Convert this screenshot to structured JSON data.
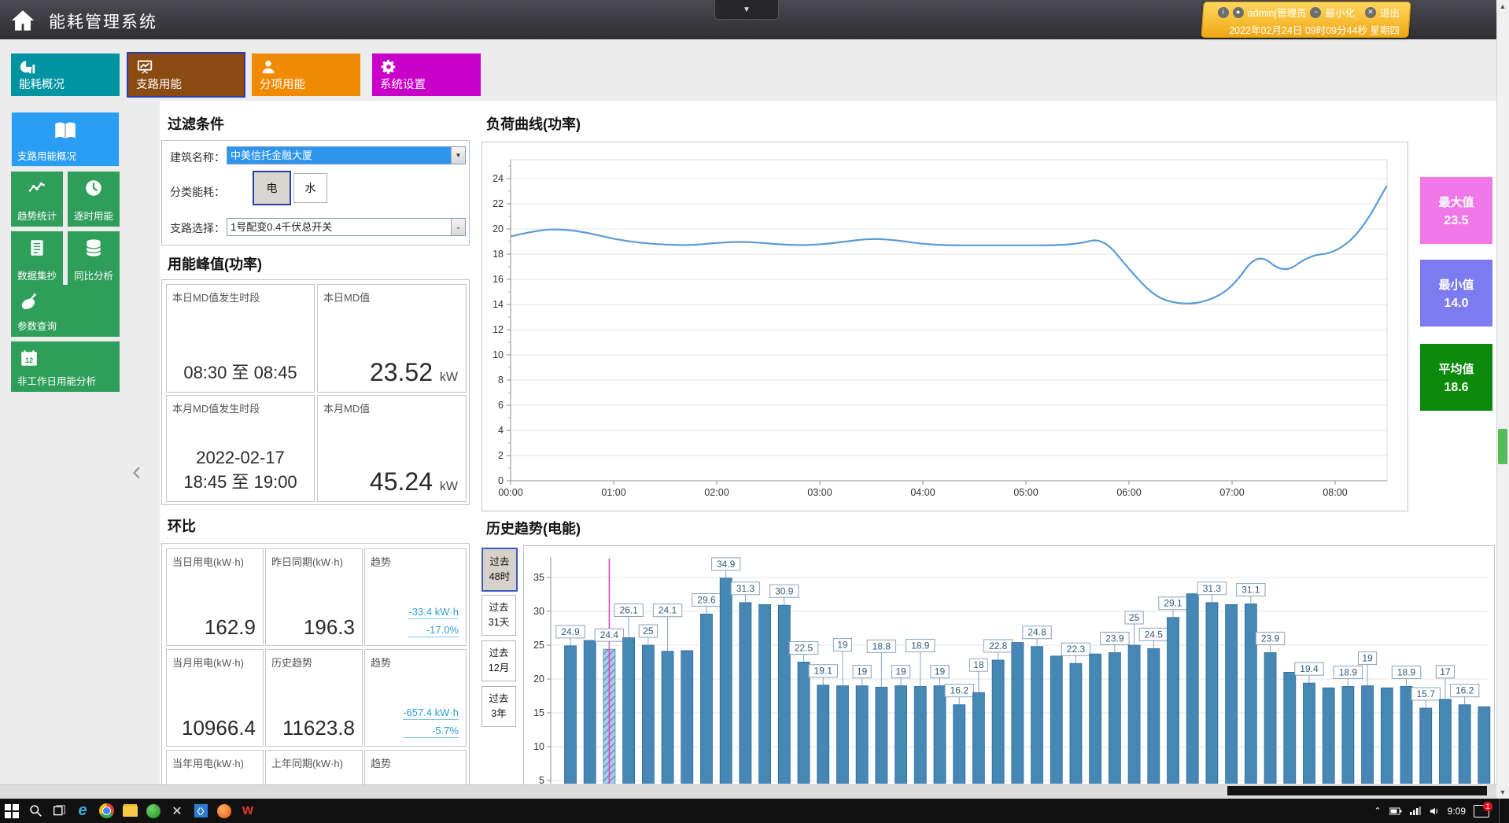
{
  "header": {
    "title": "能耗管理系统",
    "user": "admin|管理员",
    "minimize": "最小化",
    "logout": "退出",
    "datetime": "2022年02月24日  09时09分44秒  星期四",
    "collapse_icon": "▼"
  },
  "nav": {
    "tiles": [
      {
        "label": "能耗概况",
        "icon": "energy-overview",
        "color": "#0093a2",
        "selected": false
      },
      {
        "label": "支路用能",
        "icon": "branch-energy",
        "color": "#8a4a12",
        "selected": true
      },
      {
        "label": "分项用能",
        "icon": "subitem-energy",
        "color": "#f08a00",
        "selected": false
      },
      {
        "label": "系统设置",
        "icon": "system-settings",
        "color": "#c800c8",
        "selected": false
      }
    ]
  },
  "sidebar": {
    "items": [
      {
        "label": "支路用能概况",
        "icon": "book",
        "color": "#2a9df4",
        "selected": true
      },
      {
        "label": "趋势统计",
        "icon": "trend",
        "color": "#2f9e5a",
        "selected": false
      },
      {
        "label": "逐时用能",
        "icon": "clock",
        "color": "#2f9e5a",
        "selected": false
      },
      {
        "label": "数据集抄",
        "icon": "document",
        "color": "#2f9e5a",
        "selected": false
      },
      {
        "label": "同比分析",
        "icon": "database",
        "color": "#2f9e5a",
        "selected": false
      },
      {
        "label": "参数查询",
        "icon": "satellite",
        "color": "#2f9e5a",
        "selected": false
      },
      {
        "label": "非工作日用能分析",
        "icon": "calendar",
        "color": "#2f9e5a",
        "selected": false
      }
    ]
  },
  "filter": {
    "title": "过滤条件",
    "building_label": "建筑名称：",
    "building_value": "中美信托金融大厦",
    "category_label": "分类能耗：",
    "category_options": [
      {
        "label": "电",
        "selected": true
      },
      {
        "label": "水",
        "selected": false
      }
    ],
    "branch_label": "支路选择：",
    "branch_value": "1号配变0.4千伏总开关"
  },
  "peak": {
    "title": "用能峰值(功率)",
    "cards": [
      {
        "label": "本日MD值发生时段",
        "lines": [
          "08:30  至  08:45"
        ]
      },
      {
        "label": "本日MD值",
        "value": "23.52",
        "unit": "kW"
      },
      {
        "label": "本月MD值发生时段",
        "lines": [
          "2022-02-17",
          "18:45  至  19:00"
        ]
      },
      {
        "label": "本月MD值",
        "value": "45.24",
        "unit": "kW"
      }
    ]
  },
  "ring": {
    "title": "环比",
    "rows": [
      [
        {
          "label": "当日用电(kW·h)",
          "value": "162.9"
        },
        {
          "label": "昨日同期(kW·h)",
          "value": "196.3"
        },
        {
          "label": "趋势",
          "trends": [
            "-33.4 kW·h",
            "-17.0%"
          ]
        }
      ],
      [
        {
          "label": "当月用电(kW·h)",
          "value": "10966.4"
        },
        {
          "label": "历史趋势",
          "value": "11623.8"
        },
        {
          "label": "趋势",
          "trends": [
            "-657.4 kW·h",
            "-5.7%"
          ]
        }
      ],
      [
        {
          "label": "当年用电(kW·h)"
        },
        {
          "label": "上年同期(kW·h)"
        },
        {
          "label": "趋势"
        }
      ]
    ]
  },
  "load_curve": {
    "title": "负荷曲线(功率)",
    "stats": [
      {
        "label": "最大值",
        "value": "23.5",
        "color": "#f078e8"
      },
      {
        "label": "最小值",
        "value": "14.0",
        "color": "#7c7cf0"
      },
      {
        "label": "平均值",
        "value": "18.6",
        "color": "#0c8a0c"
      }
    ]
  },
  "history": {
    "title": "历史趋势(电能)",
    "range_buttons": [
      {
        "line1": "过去",
        "line2": "48时",
        "selected": true
      },
      {
        "line1": "过去",
        "line2": "31天",
        "selected": false
      },
      {
        "line1": "过去",
        "line2": "12月",
        "selected": false
      },
      {
        "line1": "过去",
        "line2": "3年",
        "selected": false
      }
    ]
  },
  "chart_data": [
    {
      "type": "line",
      "title": "负荷曲线(功率)",
      "y_unit": "kW",
      "ylim": [
        0,
        25.5
      ],
      "y_tick_step": 2,
      "y_ticks": [
        0,
        2,
        4,
        6,
        8,
        10,
        12,
        14,
        16,
        18,
        20,
        22,
        24
      ],
      "x_ticks": [
        "00:00",
        "01:00",
        "02:00",
        "03:00",
        "04:00",
        "05:00",
        "06:00",
        "07:00",
        "08:00"
      ],
      "x_start_minutes": 0,
      "x_step_minutes": 15,
      "grid": true,
      "legend": "none",
      "line_color": "#5b9bd5",
      "values": [
        19.4,
        19.9,
        20.0,
        19.7,
        19.2,
        18.9,
        18.75,
        18.7,
        18.9,
        19.0,
        18.85,
        18.7,
        18.75,
        19.0,
        19.25,
        19.1,
        18.8,
        18.7,
        18.7,
        18.7,
        18.7,
        18.7,
        18.8,
        19.3,
        16.8,
        14.6,
        14.0,
        14.2,
        15.3,
        18.2,
        16.4,
        17.9,
        18.1,
        19.8,
        23.4
      ],
      "stats": {
        "max": 23.5,
        "min": 14.0,
        "avg": 18.6
      }
    },
    {
      "type": "bar",
      "title": "历史趋势(电能)",
      "range": "过去48时",
      "y_ticks": [
        5,
        10,
        15,
        20,
        25,
        30,
        35
      ],
      "grid": true,
      "bar_color": "#4787b6",
      "highlight_index": 2,
      "highlight_line_color": "#e238c2",
      "bars": [
        {
          "v": 24.9,
          "label": "24.9"
        },
        {
          "v": 25.7
        },
        {
          "v": 24.4,
          "label": "24.4"
        },
        {
          "v": 26.1,
          "label": "26.1"
        },
        {
          "v": 25.0,
          "label": "25"
        },
        {
          "v": 24.1,
          "label": "24.1"
        },
        {
          "v": 24.2
        },
        {
          "v": 29.6,
          "label": "29.6"
        },
        {
          "v": 34.9,
          "label": "34.9"
        },
        {
          "v": 31.3,
          "label": "31.3"
        },
        {
          "v": 31.0
        },
        {
          "v": 30.9,
          "label": "30.9"
        },
        {
          "v": 22.5,
          "label": "22.5"
        },
        {
          "v": 19.1,
          "label": "19.1"
        },
        {
          "v": 19.0,
          "label": "19"
        },
        {
          "v": 19.0,
          "label": "19"
        },
        {
          "v": 18.8,
          "label": "18.8"
        },
        {
          "v": 19.0,
          "label": "19"
        },
        {
          "v": 18.9,
          "label": "18.9"
        },
        {
          "v": 19.0,
          "label": "19"
        },
        {
          "v": 16.2,
          "label": "16.2"
        },
        {
          "v": 18.0,
          "label": "18"
        },
        {
          "v": 22.8,
          "label": "22.8"
        },
        {
          "v": 25.4
        },
        {
          "v": 24.8,
          "label": "24.8"
        },
        {
          "v": 23.4
        },
        {
          "v": 22.3,
          "label": "22.3"
        },
        {
          "v": 23.7
        },
        {
          "v": 23.9,
          "label": "23.9"
        },
        {
          "v": 25.0,
          "label": "25"
        },
        {
          "v": 24.5,
          "label": "24.5"
        },
        {
          "v": 29.1,
          "label": "29.1"
        },
        {
          "v": 32.6
        },
        {
          "v": 31.3,
          "label": "31.3"
        },
        {
          "v": 31.0
        },
        {
          "v": 31.1,
          "label": "31.1"
        },
        {
          "v": 23.9,
          "label": "23.9"
        },
        {
          "v": 21.0
        },
        {
          "v": 19.4,
          "label": "19.4"
        },
        {
          "v": 18.7
        },
        {
          "v": 18.9,
          "label": "18.9"
        },
        {
          "v": 19.0,
          "label": "19"
        },
        {
          "v": 18.7
        },
        {
          "v": 18.9,
          "label": "18.9"
        },
        {
          "v": 15.7,
          "label": "15.7"
        },
        {
          "v": 17.0,
          "label": "17"
        },
        {
          "v": 16.2,
          "label": "16.2"
        },
        {
          "v": 15.9
        }
      ]
    }
  ],
  "taskbar": {
    "time": "9:09",
    "notification_badge": "1",
    "system_buttons": [
      "start",
      "search",
      "task-view"
    ],
    "pinned_apps": [
      "edge",
      "chrome",
      "folder",
      "green-app",
      "x-app",
      "code-app",
      "fire-app",
      "wps-app"
    ],
    "tray_icons": [
      "tray-expand",
      "battery",
      "network",
      "volume"
    ]
  }
}
